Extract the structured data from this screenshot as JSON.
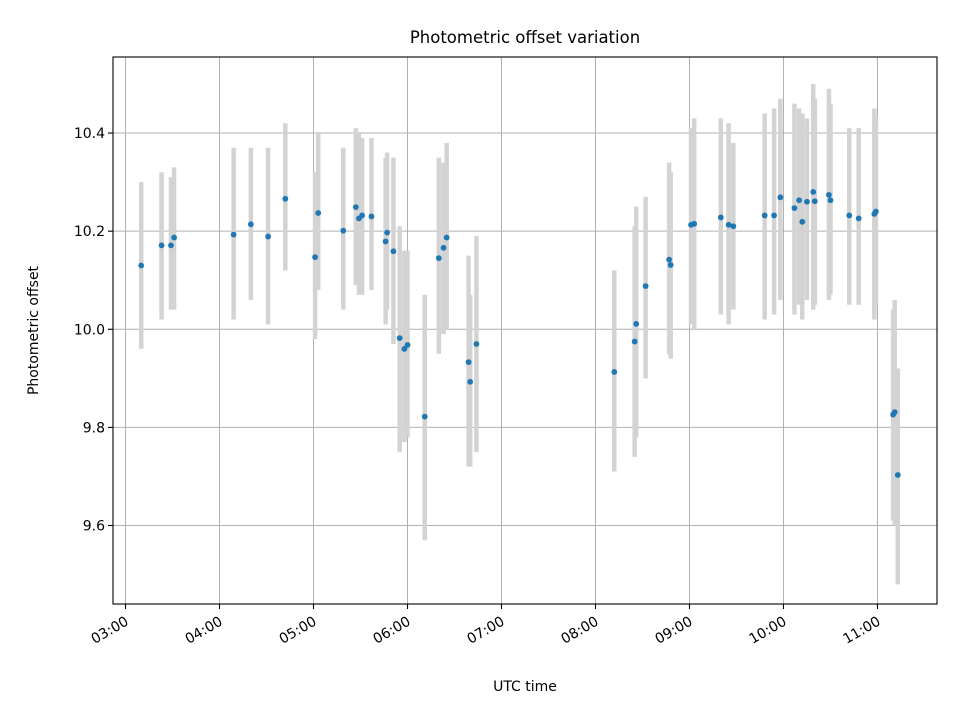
{
  "chart_data": {
    "type": "scatter",
    "title": "Photometric offset variation",
    "xlabel": "UTC time",
    "ylabel": "Photometric offset",
    "x_unit": "UTC time (HH:MM)",
    "x_ticks": [
      "03:00",
      "04:00",
      "05:00",
      "06:00",
      "07:00",
      "08:00",
      "09:00",
      "10:00",
      "11:00"
    ],
    "y_ticks": [
      9.6,
      9.8,
      10.0,
      10.2,
      10.4
    ],
    "xlim": [
      "02:52",
      "11:38"
    ],
    "ylim": [
      9.44,
      10.555
    ],
    "grid": true,
    "colors": {
      "points": "#1f77b4",
      "error_bars": "#d3d3d3",
      "grid": "#b0b0b0"
    },
    "series": [
      {
        "kind": "points_with_error_bars",
        "points": [
          {
            "x": "03:10",
            "y": 10.13,
            "lo": 9.96,
            "hi": 10.3
          },
          {
            "x": "03:23",
            "y": 10.171,
            "lo": 10.02,
            "hi": 10.32
          },
          {
            "x": "03:29",
            "y": 10.171,
            "lo": 10.04,
            "hi": 10.31
          },
          {
            "x": "03:31",
            "y": 10.187,
            "lo": 10.04,
            "hi": 10.33
          },
          {
            "x": "04:09",
            "y": 10.193,
            "lo": 10.02,
            "hi": 10.37
          },
          {
            "x": "04:20",
            "y": 10.214,
            "lo": 10.06,
            "hi": 10.37
          },
          {
            "x": "04:31",
            "y": 10.189,
            "lo": 10.01,
            "hi": 10.37
          },
          {
            "x": "04:42",
            "y": 10.266,
            "lo": 10.12,
            "hi": 10.42
          },
          {
            "x": "05:01",
            "y": 10.147,
            "lo": 9.98,
            "hi": 10.32
          },
          {
            "x": "05:03",
            "y": 10.237,
            "lo": 10.08,
            "hi": 10.4
          },
          {
            "x": "05:19",
            "y": 10.201,
            "lo": 10.04,
            "hi": 10.37
          },
          {
            "x": "05:27",
            "y": 10.249,
            "lo": 10.09,
            "hi": 10.41
          },
          {
            "x": "05:29",
            "y": 10.226,
            "lo": 10.07,
            "hi": 10.4
          },
          {
            "x": "05:31",
            "y": 10.232,
            "lo": 10.07,
            "hi": 10.39
          },
          {
            "x": "05:37",
            "y": 10.23,
            "lo": 10.08,
            "hi": 10.39
          },
          {
            "x": "05:46",
            "y": 10.179,
            "lo": 10.01,
            "hi": 10.35
          },
          {
            "x": "05:47",
            "y": 10.197,
            "lo": 10.04,
            "hi": 10.36
          },
          {
            "x": "05:51",
            "y": 10.159,
            "lo": 9.97,
            "hi": 10.35
          },
          {
            "x": "05:55",
            "y": 9.982,
            "lo": 9.75,
            "hi": 10.21
          },
          {
            "x": "05:58",
            "y": 9.96,
            "lo": 9.77,
            "hi": 10.16
          },
          {
            "x": "06:00",
            "y": 9.968,
            "lo": 9.78,
            "hi": 10.16
          },
          {
            "x": "06:11",
            "y": 9.822,
            "lo": 9.57,
            "hi": 10.07
          },
          {
            "x": "06:20",
            "y": 10.145,
            "lo": 9.95,
            "hi": 10.35
          },
          {
            "x": "06:23",
            "y": 10.166,
            "lo": 9.99,
            "hi": 10.34
          },
          {
            "x": "06:25",
            "y": 10.187,
            "lo": 10.0,
            "hi": 10.38
          },
          {
            "x": "06:39",
            "y": 9.933,
            "lo": 9.72,
            "hi": 10.15
          },
          {
            "x": "06:40",
            "y": 9.893,
            "lo": 9.72,
            "hi": 10.07
          },
          {
            "x": "06:44",
            "y": 9.97,
            "lo": 9.75,
            "hi": 10.19
          },
          {
            "x": "08:12",
            "y": 9.913,
            "lo": 9.71,
            "hi": 10.12
          },
          {
            "x": "08:25",
            "y": 9.975,
            "lo": 9.74,
            "hi": 10.21
          },
          {
            "x": "08:26",
            "y": 10.011,
            "lo": 9.78,
            "hi": 10.25
          },
          {
            "x": "08:32",
            "y": 10.088,
            "lo": 9.9,
            "hi": 10.27
          },
          {
            "x": "08:47",
            "y": 10.142,
            "lo": 9.95,
            "hi": 10.34
          },
          {
            "x": "08:48",
            "y": 10.131,
            "lo": 9.94,
            "hi": 10.32
          },
          {
            "x": "09:01",
            "y": 10.213,
            "lo": 10.01,
            "hi": 10.41
          },
          {
            "x": "09:03",
            "y": 10.215,
            "lo": 10.0,
            "hi": 10.43
          },
          {
            "x": "09:20",
            "y": 10.228,
            "lo": 10.03,
            "hi": 10.43
          },
          {
            "x": "09:25",
            "y": 10.213,
            "lo": 10.01,
            "hi": 10.42
          },
          {
            "x": "09:28",
            "y": 10.21,
            "lo": 10.04,
            "hi": 10.38
          },
          {
            "x": "09:48",
            "y": 10.232,
            "lo": 10.02,
            "hi": 10.44
          },
          {
            "x": "09:54",
            "y": 10.232,
            "lo": 10.03,
            "hi": 10.45
          },
          {
            "x": "09:58",
            "y": 10.269,
            "lo": 10.06,
            "hi": 10.47
          },
          {
            "x": "10:07",
            "y": 10.247,
            "lo": 10.03,
            "hi": 10.46
          },
          {
            "x": "10:10",
            "y": 10.263,
            "lo": 10.05,
            "hi": 10.45
          },
          {
            "x": "10:12",
            "y": 10.219,
            "lo": 10.02,
            "hi": 10.44
          },
          {
            "x": "10:15",
            "y": 10.26,
            "lo": 10.06,
            "hi": 10.43
          },
          {
            "x": "10:19",
            "y": 10.28,
            "lo": 10.04,
            "hi": 10.5
          },
          {
            "x": "10:20",
            "y": 10.261,
            "lo": 10.05,
            "hi": 10.47
          },
          {
            "x": "10:29",
            "y": 10.274,
            "lo": 10.06,
            "hi": 10.49
          },
          {
            "x": "10:30",
            "y": 10.263,
            "lo": 10.07,
            "hi": 10.46
          },
          {
            "x": "10:42",
            "y": 10.232,
            "lo": 10.05,
            "hi": 10.41
          },
          {
            "x": "10:48",
            "y": 10.226,
            "lo": 10.05,
            "hi": 10.41
          },
          {
            "x": "10:58",
            "y": 10.235,
            "lo": 10.02,
            "hi": 10.45
          },
          {
            "x": "10:59",
            "y": 10.24,
            "lo": 10.05,
            "hi": 10.43
          },
          {
            "x": "11:10",
            "y": 9.826,
            "lo": 9.61,
            "hi": 10.04
          },
          {
            "x": "11:11",
            "y": 9.831,
            "lo": 9.6,
            "hi": 10.06
          },
          {
            "x": "11:13",
            "y": 9.703,
            "lo": 9.48,
            "hi": 9.92
          }
        ]
      }
    ]
  }
}
